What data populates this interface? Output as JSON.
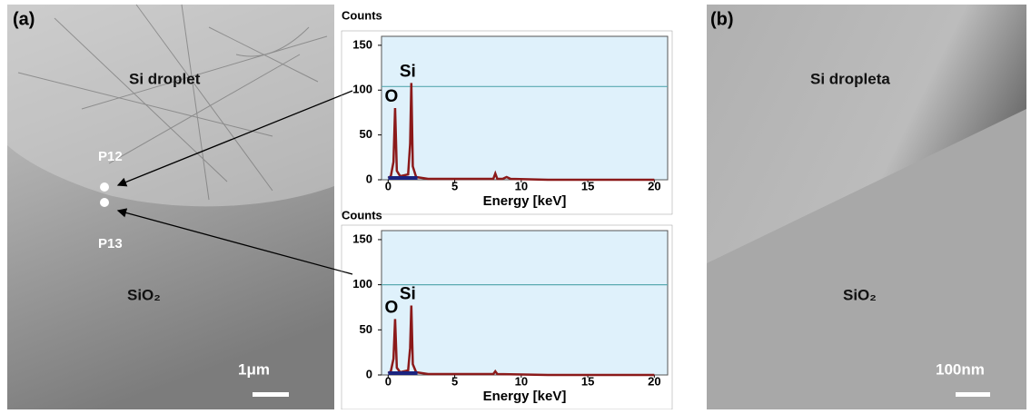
{
  "figure": {
    "panel_a": {
      "label": "(a)",
      "region_top": "Si droplet",
      "point_1": "P12",
      "point_2": "P13",
      "region_bottom": "SiO₂",
      "scale": "1μm"
    },
    "panel_b": {
      "label": "(b)",
      "region_top": "Si dropleta",
      "region_bottom": "SiO₂",
      "scale": "100nm"
    }
  },
  "chart_data": [
    {
      "type": "area",
      "y_label": "Counts",
      "x_label": "Energy [keV]",
      "x": [
        0,
        0.2,
        0.4,
        0.52,
        0.65,
        0.9,
        1.5,
        1.65,
        1.74,
        1.85,
        2.1,
        3,
        5,
        7.9,
        8.05,
        8.2,
        8.6,
        8.9,
        9.2,
        12,
        20
      ],
      "values": [
        2,
        4,
        20,
        80,
        10,
        4,
        6,
        40,
        108,
        15,
        3,
        1,
        1,
        1,
        7,
        1,
        1,
        3,
        1,
        0,
        0
      ],
      "color": "#8b1a1a",
      "peak_labels": [
        "O",
        "Si"
      ],
      "peak_index": [
        3,
        8
      ],
      "reference_line": 104,
      "reference_color": "#5aaab0",
      "xlim": [
        -0.5,
        21
      ],
      "ylim": [
        0,
        160
      ],
      "xticks": [
        0,
        5,
        10,
        15,
        20
      ],
      "yticks": [
        0,
        50,
        100,
        150
      ],
      "background": "#dff1fb"
    },
    {
      "type": "area",
      "y_label": "Counts",
      "x_label": "Energy [keV]",
      "x": [
        0,
        0.2,
        0.4,
        0.52,
        0.65,
        0.9,
        1.5,
        1.65,
        1.74,
        1.85,
        2.1,
        3,
        5,
        7.9,
        8.05,
        8.2,
        12,
        20
      ],
      "values": [
        2,
        4,
        18,
        62,
        8,
        3,
        5,
        30,
        77,
        12,
        3,
        1,
        1,
        1,
        4,
        1,
        0,
        0
      ],
      "color": "#8b1a1a",
      "peak_labels": [
        "O",
        "Si"
      ],
      "peak_index": [
        3,
        8
      ],
      "reference_line": 100,
      "reference_color": "#5aaab0",
      "xlim": [
        -0.5,
        21
      ],
      "ylim": [
        0,
        160
      ],
      "xticks": [
        0,
        5,
        10,
        15,
        20
      ],
      "yticks": [
        0,
        50,
        100,
        150
      ],
      "background": "#dff1fb"
    }
  ]
}
